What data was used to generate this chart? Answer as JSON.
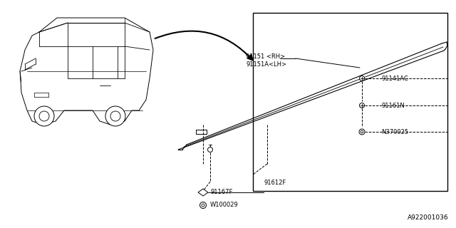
{
  "bg_color": "#ffffff",
  "line_color": "#000000",
  "fig_width": 6.4,
  "fig_height": 3.2,
  "dpi": 100,
  "part_number_bottom": "A922001036",
  "labels": {
    "91151_RH_LH": "91151 <RH>\n91151A<LH>",
    "91141AC": "91141AC",
    "91161N": "91161N",
    "N370025": "N370025",
    "91612F": "91612F",
    "91167F": "91167F",
    "W100029": "W100029"
  }
}
